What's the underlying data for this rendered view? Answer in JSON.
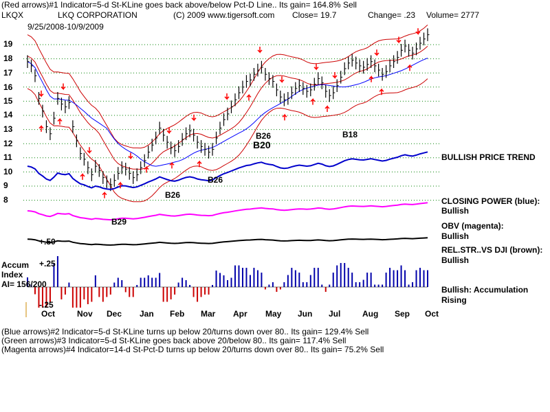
{
  "header": {
    "line1": "(Red arrows)#1 Indicator=5-d St-KLine goes back above/below Pct-D Line.. Its gain= 164.8% Sell",
    "ticker": "LKQX",
    "company": "LKQ CORPORATION",
    "copyright": "(C) 2009 www.tigersoft.com",
    "close": "Close=  19.7",
    "change": "Change= .23",
    "volume": "Volume=  2777",
    "dates": "9/25/2008-10/9/2009"
  },
  "chart_data": {
    "type": "line",
    "title": "LKQ CORPORATION",
    "x_range": [
      "9/25/2008",
      "10/9/2009"
    ],
    "ylim": [
      8,
      19
    ],
    "y_ticks": [
      "19",
      "18",
      "17",
      "16",
      "15",
      "14",
      "13",
      "12",
      "11",
      "10",
      "9",
      "8"
    ],
    "month_labels": [
      "Oct",
      "Nov",
      "Dec",
      "Jan",
      "Feb",
      "Mar",
      "Apr",
      "May",
      "Jun",
      "Jul",
      "Aug",
      "Sep",
      "Oct"
    ],
    "series": [
      {
        "name": "CLOSING POWER (blue)",
        "color": "#0000cc"
      },
      {
        "name": "OBV (magenta)",
        "color": "#ff00ff"
      },
      {
        "name": "REL.STR..VS DJI (brown)",
        "color": "#000000"
      }
    ],
    "price_close": [
      17.8,
      17.5,
      16.8,
      15.2,
      14.3,
      13.2,
      12.7,
      13.8,
      15.2,
      14.8,
      14.6,
      14.9,
      13.2,
      12.2,
      11.3,
      10.9,
      10.3,
      9.8,
      10.4,
      10.1,
      9.6,
      9.3,
      9.1,
      9.4,
      9.9,
      10.3,
      10.2,
      9.9,
      9.6,
      9.8,
      10.3,
      10.8,
      11.4,
      11.9,
      12.4,
      13.1,
      12.6,
      12.1,
      11.7,
      11.5,
      11.8,
      12.3,
      12.7,
      12.9,
      12.6,
      12.1,
      11.8,
      11.6,
      11.4,
      11.6,
      12.4,
      13.1,
      13.7,
      14.1,
      14.6,
      15.1,
      15.6,
      16.0,
      16.4,
      16.5,
      16.9,
      17.2,
      17.4,
      16.9,
      16.6,
      16.4,
      15.8,
      15.3,
      15.1,
      15.2,
      15.6,
      15.9,
      16.1,
      15.9,
      15.7,
      15.8,
      16.2,
      16.6,
      16.3,
      15.7,
      15.4,
      15.6,
      16.1,
      16.7,
      17.3,
      17.7,
      17.9,
      17.7,
      17.5,
      17.4,
      17.6,
      17.8,
      17.5,
      17.2,
      16.9,
      17.1,
      17.5,
      17.8,
      18.1,
      18.6,
      18.9,
      18.6,
      18.4,
      18.7,
      19.1,
      19.4,
      19.7
    ],
    "price_annotations": [
      "B26",
      "B20",
      "B18",
      "B29",
      "B26",
      "B26"
    ],
    "closing_power_right": "Bullish",
    "indicator_labels": {
      "price": "BULLISH PRICE TREND",
      "closing_power": "CLOSING POWER (blue):",
      "closing_power_status": "Bullish",
      "obv": "OBV (magenta):",
      "obv_status": "Bullish",
      "rel_str": "REL.STR..VS DJI (brown):",
      "rel_str_status": "Bullish",
      "accum": "Bullish: Accumulation Rising"
    },
    "accum_index": {
      "label1": "Accum",
      "label2": "Index",
      "label3": "AI= 156/200",
      "tick_top": "+.25",
      "tick_bottom": "-.25",
      "rel_tick": "+.50"
    }
  },
  "footer": {
    "line1": "(Blue arrows)#2 Indicator=5-d St-KLine turns up below 20/turns down over 80.. Its gain= 129.4% Sell",
    "line2": "(Green arrows)#3 Indicator=5-d St-KLine goes back above 20/below 80.. Its gain= 117.4% Sell",
    "line3": "(Magenta arrows)#4 Indicator=14-d St-Pct-D turns up below 20/turns down over 80.. Its gain= 75.2% Sell"
  },
  "colors": {
    "price_bars": "#000000",
    "bollinger": "#cc0000",
    "ma_blue": "#0000ff",
    "closing_power": "#0000cc",
    "obv": "#ff00ff",
    "accum_pos": "#0000aa",
    "accum_neg": "#cc0000",
    "gridline": "#008000"
  }
}
